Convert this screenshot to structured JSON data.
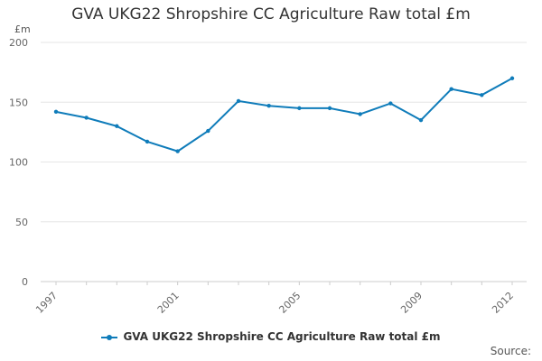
{
  "chart_data": {
    "type": "line",
    "title": "GVA UKG22 Shropshire CC Agriculture Raw total £m",
    "ylabel": "£m",
    "xlabel": "",
    "ylim": [
      0,
      200
    ],
    "yticks": [
      0,
      50,
      100,
      150,
      200
    ],
    "xticks": [
      "1997",
      "2001",
      "2005",
      "2009",
      "2012"
    ],
    "x": [
      1997,
      1998,
      1999,
      2000,
      2001,
      2002,
      2003,
      2004,
      2005,
      2006,
      2007,
      2008,
      2009,
      2010,
      2011,
      2012
    ],
    "series": [
      {
        "name": "GVA UKG22 Shropshire CC Agriculture Raw total £m",
        "color": "#0f7cba",
        "values": [
          142,
          137,
          130,
          117,
          109,
          126,
          151,
          147,
          145,
          145,
          140,
          149,
          135,
          161,
          156,
          170
        ]
      }
    ],
    "grid": true,
    "legend": "bottom"
  },
  "footer": {
    "source_label": "Source:"
  }
}
